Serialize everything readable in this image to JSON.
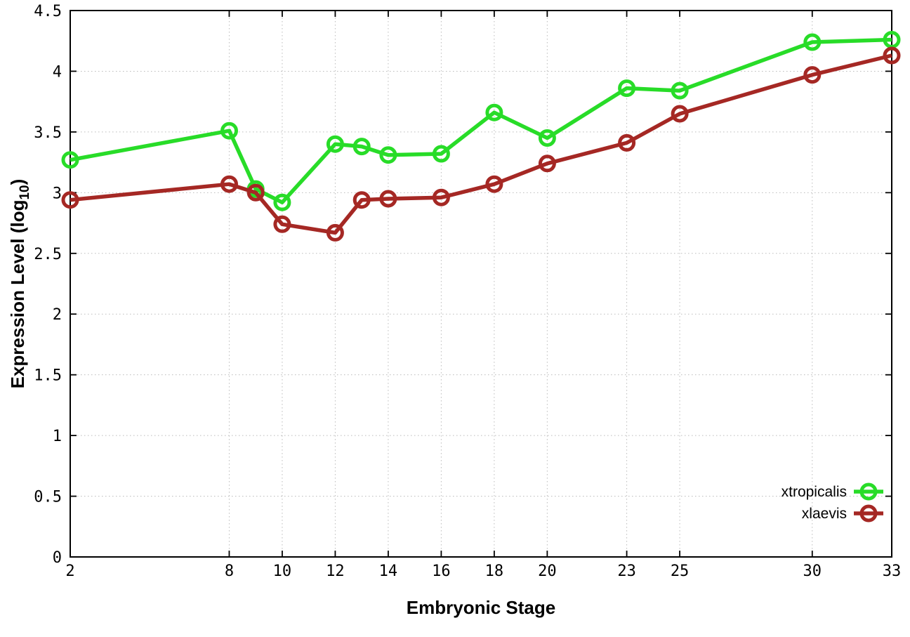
{
  "chart_data": {
    "type": "line",
    "title": "",
    "xlabel": "Embryonic Stage",
    "ylabel": {
      "prefix": "Expression Level (log",
      "sub": "10",
      "suffix": ")"
    },
    "xlim": [
      2,
      33
    ],
    "ylim": [
      0,
      4.5
    ],
    "x_ticks": [
      2,
      8,
      10,
      12,
      14,
      16,
      18,
      20,
      23,
      25,
      30,
      33
    ],
    "y_ticks": [
      0,
      0.5,
      1,
      1.5,
      2,
      2.5,
      3,
      3.5,
      4,
      4.5
    ],
    "grid": true,
    "legend_position": "bottom-right",
    "background_color": "#ffffff",
    "axis_color": "#000000",
    "grid_color": "#bbbbbb",
    "x": [
      2,
      8,
      9,
      10,
      12,
      13,
      14,
      16,
      18,
      20,
      23,
      25,
      30,
      33
    ],
    "series": [
      {
        "name": "xtropicalis",
        "color": "#28dc28",
        "values": [
          3.27,
          3.51,
          3.03,
          2.92,
          3.4,
          3.38,
          3.31,
          3.32,
          3.66,
          3.45,
          3.86,
          3.84,
          4.24,
          4.26
        ]
      },
      {
        "name": "xlaevis",
        "color": "#a52824",
        "values": [
          2.94,
          3.07,
          3.0,
          2.74,
          2.67,
          2.94,
          2.95,
          2.96,
          3.07,
          3.24,
          3.41,
          3.65,
          3.97,
          4.13
        ]
      }
    ]
  }
}
